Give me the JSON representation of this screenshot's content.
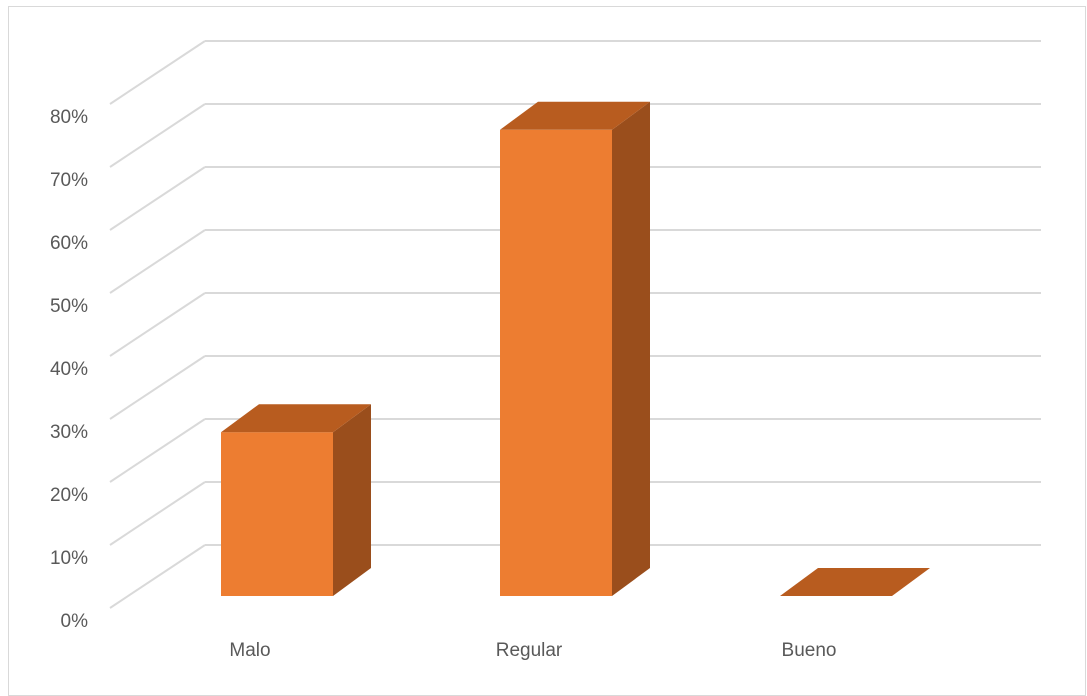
{
  "chart_data": {
    "type": "bar",
    "title": "",
    "xlabel": "",
    "ylabel": "",
    "categories": [
      "Malo",
      "Regular",
      "Bueno"
    ],
    "values": [
      0.26,
      0.74,
      0.0
    ],
    "ylim": [
      0,
      0.8
    ],
    "yticks": [
      "0%",
      "10%",
      "20%",
      "30%",
      "40%",
      "50%",
      "60%",
      "70%",
      "80%"
    ],
    "y_format": "percent",
    "grid": true,
    "legend": "none",
    "style": "3d-column",
    "colors": {
      "front": "#ED7D31",
      "top": "#B85C1F",
      "side": "#9A4E1C",
      "grid": "#d9d9d9",
      "text": "#595959"
    }
  }
}
